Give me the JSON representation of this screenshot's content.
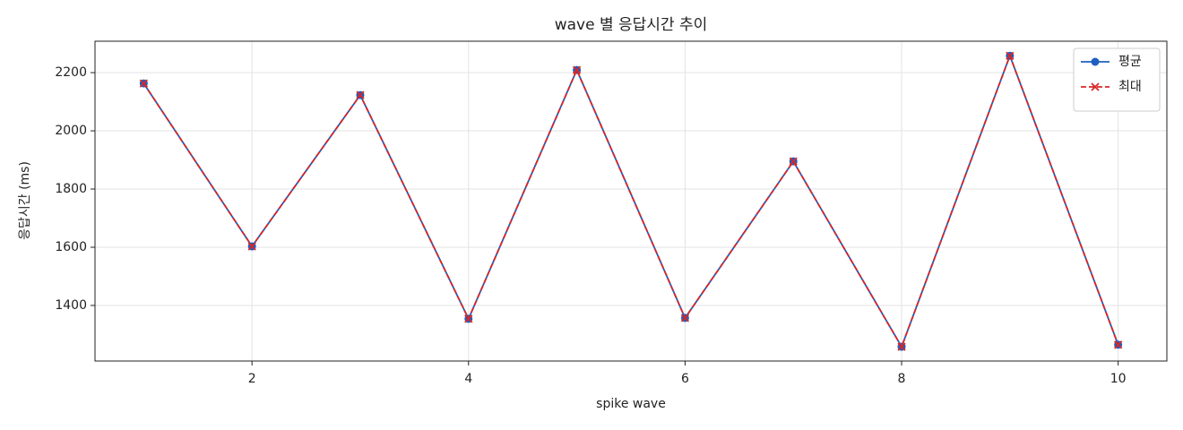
{
  "chart_data": {
    "type": "line",
    "title": "wave 별 응답시간 추이",
    "x_label": "spike wave",
    "y_label": "응답시간 (ms)",
    "x": [
      1,
      2,
      3,
      4,
      5,
      6,
      7,
      8,
      9,
      10
    ],
    "series": [
      {
        "name": "평균",
        "color": "#1f5fbf",
        "marker": "circle",
        "dashed": false,
        "values": [
          2163,
          1603,
          2123,
          1354,
          2209,
          1357,
          1895,
          1258,
          2258,
          1265
        ]
      },
      {
        "name": "최대",
        "color": "#d62728",
        "marker": "x",
        "dashed": true,
        "values": [
          2163,
          1603,
          2123,
          1354,
          2209,
          1357,
          1895,
          1258,
          2258,
          1265
        ]
      }
    ],
    "xlim": [
      0.55,
      10.45
    ],
    "ylim": [
      1209,
      2308
    ],
    "xticks": [
      2,
      4,
      6,
      8,
      10
    ],
    "yticks": [
      1400,
      1600,
      1800,
      2000,
      2200
    ],
    "grid": true,
    "legend": "upper right"
  }
}
